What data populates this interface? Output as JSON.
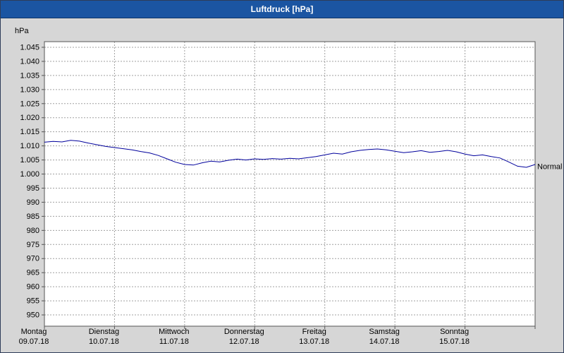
{
  "window": {
    "title": "Luftdruck [hPa]"
  },
  "chart_data": {
    "type": "line",
    "title": "Luftdruck [hPa]",
    "y_unit": "hPa",
    "ylim": [
      950,
      1045
    ],
    "y_tick_step": 5,
    "grid": "dashed",
    "legend_position": "none",
    "y_ticks": [
      {
        "value": 1045,
        "label": "1.045"
      },
      {
        "value": 1040,
        "label": "1.040"
      },
      {
        "value": 1035,
        "label": "1.035"
      },
      {
        "value": 1030,
        "label": "1.030"
      },
      {
        "value": 1025,
        "label": "1.025"
      },
      {
        "value": 1020,
        "label": "1.020"
      },
      {
        "value": 1015,
        "label": "1.015"
      },
      {
        "value": 1010,
        "label": "1.010"
      },
      {
        "value": 1005,
        "label": "1.005"
      },
      {
        "value": 1000,
        "label": "1.000"
      },
      {
        "value": 995,
        "label": "995"
      },
      {
        "value": 990,
        "label": "990"
      },
      {
        "value": 985,
        "label": "985"
      },
      {
        "value": 980,
        "label": "980"
      },
      {
        "value": 975,
        "label": "975"
      },
      {
        "value": 970,
        "label": "970"
      },
      {
        "value": 965,
        "label": "965"
      },
      {
        "value": 960,
        "label": "960"
      },
      {
        "value": 955,
        "label": "955"
      },
      {
        "value": 950,
        "label": "950"
      }
    ],
    "x_days": [
      {
        "name": "Montag",
        "date": "09.07.18"
      },
      {
        "name": "Dienstag",
        "date": "10.07.18"
      },
      {
        "name": "Mittwoch",
        "date": "11.07.18"
      },
      {
        "name": "Donnerstag",
        "date": "12.07.18"
      },
      {
        "name": "Freitag",
        "date": "13.07.18"
      },
      {
        "name": "Samstag",
        "date": "14.07.18"
      },
      {
        "name": "Sonntag",
        "date": "15.07.18"
      }
    ],
    "series": [
      {
        "name": "Luftdruck",
        "unit": "hPa",
        "sample_interval_hours": 3,
        "values": [
          1011.3,
          1011.6,
          1011.4,
          1012.0,
          1011.7,
          1011.0,
          1010.4,
          1009.8,
          1009.4,
          1009.0,
          1008.6,
          1008.0,
          1007.5,
          1006.6,
          1005.4,
          1004.2,
          1003.4,
          1003.2,
          1004.0,
          1004.6,
          1004.3,
          1004.9,
          1005.3,
          1005.0,
          1005.4,
          1005.2,
          1005.5,
          1005.3,
          1005.6,
          1005.4,
          1005.8,
          1006.2,
          1006.8,
          1007.4,
          1007.1,
          1007.9,
          1008.4,
          1008.7,
          1008.9,
          1008.6,
          1008.1,
          1007.6,
          1007.9,
          1008.3,
          1007.7,
          1008.0,
          1008.4,
          1007.9,
          1007.1,
          1006.5,
          1006.8,
          1006.2,
          1005.7,
          1004.3,
          1002.8,
          1002.4,
          1003.4
        ]
      }
    ],
    "annotation": {
      "label": "Normal",
      "value": 1002.8
    },
    "colors": {
      "titlebar_bg": "#1b55a2",
      "titlebar_text": "#ffffff",
      "background": "#d6d6d6",
      "plot_bg": "#ffffff",
      "grid": "#a0a0a0",
      "axis": "#555555",
      "line": "#00009c",
      "text": "#000000"
    }
  }
}
